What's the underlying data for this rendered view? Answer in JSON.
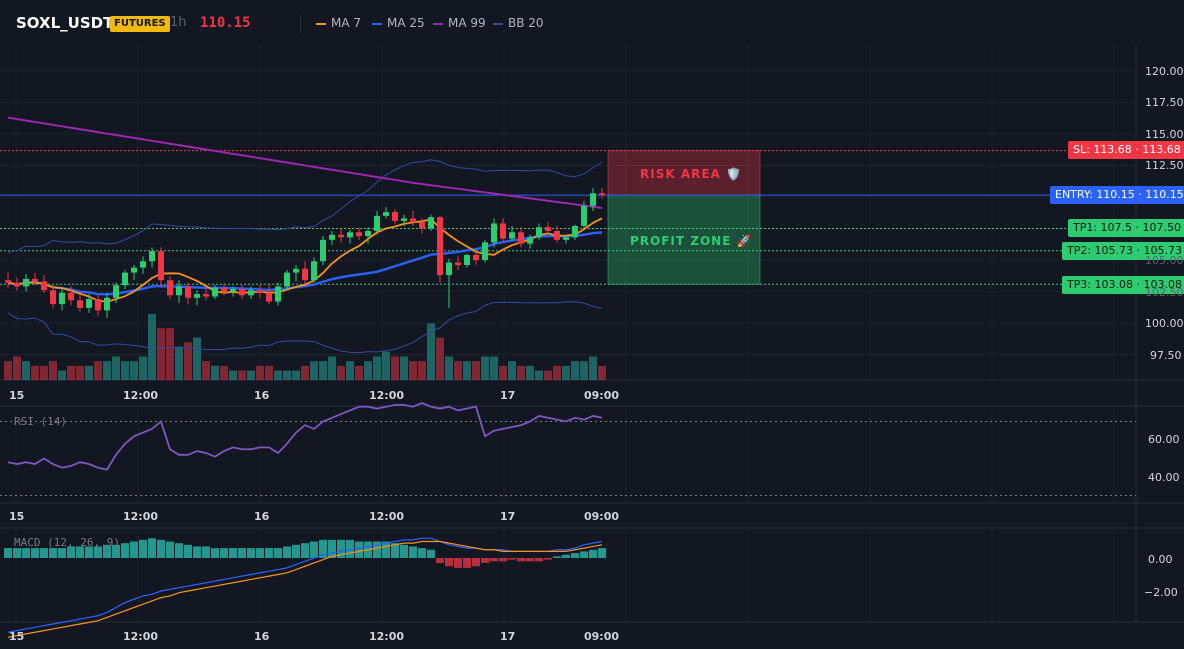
{
  "header": {
    "symbol": "SOXL_USDT",
    "badge": "FUTURES",
    "timeframe": "1h",
    "last_price": "110.15",
    "legend": [
      {
        "label": "MA 7",
        "color": "#f7931a"
      },
      {
        "label": "MA 25",
        "color": "#2962ff"
      },
      {
        "label": "MA 99",
        "color": "#9c27b0"
      },
      {
        "label": "BB 20",
        "color": "#3449a3"
      }
    ]
  },
  "price_axis": [
    "120.00",
    "117.50",
    "115.00",
    "112.50",
    "110.00",
    "107.50",
    "105.00",
    "102.50",
    "100.00",
    "97.50"
  ],
  "price_tags": {
    "sl": "SL: 113.68 · 113.68",
    "entry": "ENTRY: 110.15 · 110.15",
    "tp1": "TP1: 107.5 · 107.50",
    "tp2": "TP2: 105.73 · 105.73",
    "tp3": "TP3: 103.08 · 103.08"
  },
  "zones": {
    "risk": "RISK AREA 🛡️",
    "profit": "PROFIT ZONE 🚀"
  },
  "time_axis": [
    "15",
    "12:00",
    "16",
    "12:00",
    "17",
    "09:00"
  ],
  "rsi": {
    "label": "RSI (14)",
    "axis": [
      "60.00",
      "40.00"
    ]
  },
  "macd": {
    "label": "MACD (12, 26, 9)",
    "axis": [
      "0.00",
      "−2.00"
    ]
  },
  "colors": {
    "up": "#26a69a",
    "bull": "#2ecc71",
    "bear": "#f23645",
    "bg": "#131722",
    "grid": "#1e222d"
  },
  "chart_data": {
    "type": "candlestick",
    "ylim": [
      96,
      122
    ],
    "candles": [
      [
        103.4,
        104.0,
        102.8,
        103.2
      ],
      [
        103.2,
        103.6,
        102.6,
        102.9
      ],
      [
        102.9,
        103.9,
        102.5,
        103.5
      ],
      [
        103.5,
        104.0,
        103.0,
        103.3
      ],
      [
        103.3,
        103.8,
        102.4,
        102.6
      ],
      [
        102.6,
        103.0,
        101.2,
        101.5
      ],
      [
        101.5,
        102.8,
        101.0,
        102.4
      ],
      [
        102.4,
        102.9,
        101.4,
        101.8
      ],
      [
        101.8,
        102.3,
        100.9,
        101.2
      ],
      [
        101.2,
        102.3,
        100.8,
        101.9
      ],
      [
        101.9,
        102.2,
        100.6,
        101.0
      ],
      [
        101.0,
        102.4,
        100.4,
        102.0
      ],
      [
        102.0,
        103.2,
        101.6,
        103.0
      ],
      [
        103.0,
        104.2,
        102.7,
        104.0
      ],
      [
        104.0,
        104.6,
        103.4,
        104.4
      ],
      [
        104.4,
        105.3,
        103.9,
        104.9
      ],
      [
        104.9,
        106.0,
        104.4,
        105.7
      ],
      [
        105.7,
        106.0,
        102.8,
        103.4
      ],
      [
        103.4,
        103.7,
        101.9,
        102.2
      ],
      [
        102.2,
        103.4,
        101.6,
        102.9
      ],
      [
        102.9,
        103.2,
        101.5,
        102.0
      ],
      [
        102.0,
        102.6,
        101.4,
        102.3
      ],
      [
        102.3,
        102.8,
        101.8,
        102.1
      ],
      [
        102.1,
        103.0,
        101.9,
        102.8
      ],
      [
        102.8,
        103.1,
        102.2,
        102.5
      ],
      [
        102.5,
        102.9,
        102.1,
        102.7
      ],
      [
        102.7,
        103.0,
        101.9,
        102.2
      ],
      [
        102.2,
        102.9,
        101.9,
        102.6
      ],
      [
        102.6,
        103.0,
        102.0,
        102.4
      ],
      [
        102.4,
        103.0,
        101.5,
        101.7
      ],
      [
        101.7,
        103.2,
        101.4,
        102.9
      ],
      [
        102.9,
        104.2,
        102.6,
        104.0
      ],
      [
        104.0,
        104.6,
        103.3,
        104.3
      ],
      [
        104.3,
        104.9,
        103.1,
        103.4
      ],
      [
        103.4,
        105.2,
        103.2,
        104.9
      ],
      [
        104.9,
        106.9,
        104.6,
        106.6
      ],
      [
        106.6,
        107.3,
        106.2,
        107.0
      ],
      [
        107.0,
        107.5,
        106.4,
        106.8
      ],
      [
        106.8,
        107.4,
        106.3,
        107.2
      ],
      [
        107.2,
        107.6,
        106.6,
        106.9
      ],
      [
        106.9,
        107.6,
        106.3,
        107.3
      ],
      [
        107.3,
        108.9,
        107.0,
        108.5
      ],
      [
        108.5,
        109.2,
        108.3,
        108.8
      ],
      [
        108.8,
        109.0,
        107.9,
        108.1
      ],
      [
        108.1,
        108.6,
        107.7,
        108.3
      ],
      [
        108.3,
        108.9,
        107.7,
        108.0
      ],
      [
        108.0,
        108.3,
        107.1,
        107.5
      ],
      [
        107.5,
        108.6,
        107.3,
        108.4
      ],
      [
        108.4,
        108.5,
        103.2,
        103.8
      ],
      [
        103.8,
        105.1,
        101.2,
        104.8
      ],
      [
        104.8,
        105.3,
        104.2,
        104.6
      ],
      [
        104.6,
        105.5,
        104.4,
        105.4
      ],
      [
        105.4,
        105.7,
        104.6,
        105.0
      ],
      [
        105.0,
        106.6,
        104.8,
        106.4
      ],
      [
        106.4,
        108.3,
        106.0,
        107.9
      ],
      [
        107.9,
        108.3,
        106.4,
        106.7
      ],
      [
        106.7,
        107.7,
        106.5,
        107.2
      ],
      [
        107.2,
        107.6,
        106.0,
        106.3
      ],
      [
        106.3,
        107.0,
        105.9,
        106.8
      ],
      [
        106.8,
        107.9,
        106.6,
        107.6
      ],
      [
        107.6,
        108.0,
        107.1,
        107.3
      ],
      [
        107.3,
        107.7,
        106.4,
        106.6
      ],
      [
        106.6,
        107.0,
        106.3,
        106.8
      ],
      [
        106.8,
        107.8,
        106.6,
        107.7
      ],
      [
        107.7,
        109.7,
        107.5,
        109.3
      ],
      [
        109.3,
        110.7,
        108.9,
        110.3
      ],
      [
        110.3,
        110.7,
        109.9,
        110.15
      ]
    ],
    "volume": [
      4,
      5,
      4,
      3,
      3,
      4,
      2,
      3,
      3,
      3,
      4,
      4,
      5,
      4,
      4,
      5,
      14,
      11,
      11,
      7,
      8,
      9,
      4,
      3,
      3,
      2,
      2,
      2,
      3,
      3,
      2,
      2,
      2,
      3,
      4,
      4,
      5,
      3,
      4,
      3,
      4,
      5,
      6,
      5,
      5,
      4,
      4,
      12,
      9,
      5,
      4,
      4,
      4,
      5,
      5,
      3,
      4,
      3,
      3,
      2,
      2,
      3,
      3,
      4,
      4,
      5,
      3
    ],
    "rsi": [
      48,
      47,
      48,
      47,
      50,
      47,
      45,
      46,
      48,
      47,
      45,
      44,
      52,
      58,
      62,
      64,
      66,
      70,
      55,
      52,
      52,
      54,
      53,
      51,
      54,
      56,
      55,
      55,
      56,
      56,
      53,
      58,
      64,
      68,
      66,
      70,
      72,
      74,
      76,
      78,
      78,
      77,
      78,
      79,
      79,
      78,
      80,
      78,
      77,
      78,
      76,
      77,
      78,
      62,
      65,
      66,
      67,
      68,
      70,
      73,
      72,
      71,
      70,
      72,
      71,
      73,
      72
    ],
    "macd_hist": [
      0.6,
      0.6,
      0.6,
      0.6,
      0.6,
      0.6,
      0.6,
      0.7,
      0.7,
      0.7,
      0.7,
      0.8,
      0.8,
      0.9,
      1.0,
      1.1,
      1.2,
      1.1,
      1.0,
      0.9,
      0.8,
      0.7,
      0.7,
      0.6,
      0.6,
      0.6,
      0.6,
      0.6,
      0.6,
      0.6,
      0.6,
      0.7,
      0.8,
      0.9,
      1.0,
      1.1,
      1.1,
      1.1,
      1.1,
      1.0,
      1.0,
      1.0,
      1.0,
      0.9,
      0.8,
      0.7,
      0.6,
      0.5,
      -0.3,
      -0.5,
      -0.6,
      -0.6,
      -0.5,
      -0.3,
      -0.2,
      -0.2,
      -0.1,
      -0.2,
      -0.2,
      -0.2,
      -0.1,
      0.1,
      0.2,
      0.3,
      0.4,
      0.5,
      0.6
    ],
    "macd_line": [
      -4.5,
      -4.4,
      -4.3,
      -4.2,
      -4.1,
      -4.0,
      -3.9,
      -3.8,
      -3.7,
      -3.6,
      -3.5,
      -3.3,
      -3.0,
      -2.7,
      -2.5,
      -2.3,
      -2.2,
      -2.0,
      -1.9,
      -1.8,
      -1.7,
      -1.6,
      -1.5,
      -1.4,
      -1.3,
      -1.2,
      -1.1,
      -1.0,
      -0.9,
      -0.8,
      -0.7,
      -0.6,
      -0.4,
      -0.2,
      0.0,
      0.2,
      0.3,
      0.4,
      0.5,
      0.6,
      0.7,
      0.8,
      0.9,
      1.0,
      1.1,
      1.1,
      1.2,
      1.2,
      1.0,
      0.8,
      0.7,
      0.6,
      0.6,
      0.5,
      0.5,
      0.5,
      0.4,
      0.4,
      0.4,
      0.4,
      0.4,
      0.5,
      0.5,
      0.6,
      0.8,
      0.9,
      1.0
    ],
    "signal_line": [
      -4.8,
      -4.7,
      -4.6,
      -4.5,
      -4.4,
      -4.3,
      -4.2,
      -4.1,
      -4.0,
      -3.9,
      -3.8,
      -3.6,
      -3.4,
      -3.2,
      -3.0,
      -2.8,
      -2.6,
      -2.4,
      -2.3,
      -2.1,
      -2.0,
      -1.9,
      -1.8,
      -1.7,
      -1.6,
      -1.5,
      -1.4,
      -1.3,
      -1.2,
      -1.1,
      -1.0,
      -0.9,
      -0.7,
      -0.5,
      -0.3,
      -0.1,
      0.1,
      0.2,
      0.3,
      0.4,
      0.5,
      0.6,
      0.7,
      0.8,
      0.9,
      0.9,
      1.0,
      1.0,
      1.0,
      0.9,
      0.8,
      0.7,
      0.6,
      0.5,
      0.5,
      0.4,
      0.4,
      0.4,
      0.4,
      0.4,
      0.4,
      0.4,
      0.4,
      0.5,
      0.6,
      0.7,
      0.8
    ]
  }
}
